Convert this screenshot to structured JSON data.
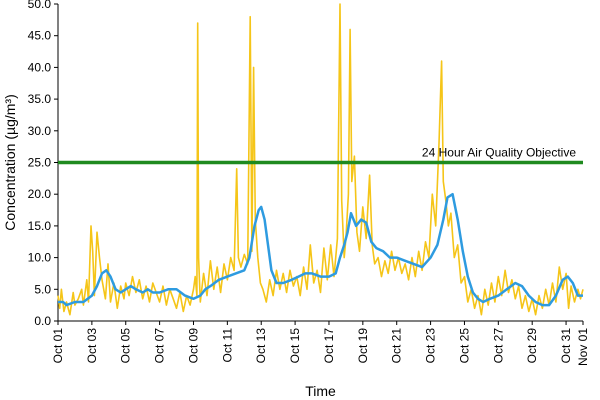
{
  "chart_data": {
    "type": "line",
    "title": "",
    "xlabel": "Time",
    "ylabel": "Concentration (µg/m³)",
    "ylim": [
      0,
      50
    ],
    "yticks": [
      "0.0",
      "5.0",
      "10.0",
      "15.0",
      "20.0",
      "25.0",
      "30.0",
      "35.0",
      "40.0",
      "45.0",
      "50.0"
    ],
    "x_range_days": [
      1,
      32
    ],
    "xticks": [
      {
        "day": 1,
        "label": "Oct 01"
      },
      {
        "day": 3,
        "label": "Oct 03"
      },
      {
        "day": 5,
        "label": "Oct 05"
      },
      {
        "day": 7,
        "label": "Oct 07"
      },
      {
        "day": 9,
        "label": "Oct 09"
      },
      {
        "day": 11,
        "label": "Oct 11"
      },
      {
        "day": 13,
        "label": "Oct 13"
      },
      {
        "day": 15,
        "label": "Oct 15"
      },
      {
        "day": 17,
        "label": "Oct 17"
      },
      {
        "day": 19,
        "label": "Oct 19"
      },
      {
        "day": 21,
        "label": "Oct 21"
      },
      {
        "day": 23,
        "label": "Oct 23"
      },
      {
        "day": 25,
        "label": "Oct 25"
      },
      {
        "day": 27,
        "label": "Oct 27"
      },
      {
        "day": 29,
        "label": "Oct 29"
      },
      {
        "day": 31,
        "label": "Oct 31"
      },
      {
        "day": 32,
        "label": "Nov 01"
      }
    ],
    "grid": false,
    "legend": "none",
    "colors": {
      "hourly": "#f5c518",
      "rolling": "#2e9be0",
      "objective": "#1f8a1f"
    },
    "objective": {
      "value": 25.0,
      "label": "24 Hour Air Quality Objective"
    },
    "series": [
      {
        "key": "hourly",
        "points": [
          [
            1.0,
            4.0
          ],
          [
            1.1,
            2.0
          ],
          [
            1.2,
            5.0
          ],
          [
            1.35,
            1.5
          ],
          [
            1.5,
            3.0
          ],
          [
            1.7,
            1.0
          ],
          [
            1.9,
            4.5
          ],
          [
            2.0,
            2.5
          ],
          [
            2.2,
            3.5
          ],
          [
            2.4,
            5.0
          ],
          [
            2.5,
            2.5
          ],
          [
            2.7,
            6.5
          ],
          [
            2.8,
            3.0
          ],
          [
            2.95,
            15.0
          ],
          [
            3.05,
            11.0
          ],
          [
            3.15,
            4.0
          ],
          [
            3.3,
            14.0
          ],
          [
            3.45,
            10.0
          ],
          [
            3.6,
            6.5
          ],
          [
            3.8,
            3.5
          ],
          [
            3.95,
            9.0
          ],
          [
            4.1,
            3.0
          ],
          [
            4.3,
            6.0
          ],
          [
            4.5,
            2.0
          ],
          [
            4.7,
            5.5
          ],
          [
            4.9,
            3.5
          ],
          [
            5.0,
            6.0
          ],
          [
            5.2,
            4.0
          ],
          [
            5.4,
            7.0
          ],
          [
            5.6,
            4.5
          ],
          [
            5.8,
            6.5
          ],
          [
            6.0,
            3.5
          ],
          [
            6.2,
            5.5
          ],
          [
            6.4,
            3.0
          ],
          [
            6.6,
            6.0
          ],
          [
            6.8,
            4.5
          ],
          [
            7.0,
            3.0
          ],
          [
            7.2,
            5.5
          ],
          [
            7.4,
            2.5
          ],
          [
            7.6,
            5.0
          ],
          [
            7.8,
            3.5
          ],
          [
            8.0,
            2.0
          ],
          [
            8.2,
            4.5
          ],
          [
            8.4,
            1.5
          ],
          [
            8.6,
            4.0
          ],
          [
            8.8,
            2.5
          ],
          [
            9.0,
            5.0
          ],
          [
            9.1,
            7.0
          ],
          [
            9.2,
            4.0
          ],
          [
            9.25,
            47.0
          ],
          [
            9.3,
            10.0
          ],
          [
            9.4,
            3.0
          ],
          [
            9.6,
            7.5
          ],
          [
            9.8,
            4.0
          ],
          [
            10.0,
            9.5
          ],
          [
            10.2,
            5.0
          ],
          [
            10.4,
            8.5
          ],
          [
            10.6,
            4.5
          ],
          [
            10.8,
            9.0
          ],
          [
            11.0,
            6.5
          ],
          [
            11.2,
            10.0
          ],
          [
            11.4,
            8.0
          ],
          [
            11.55,
            24.0
          ],
          [
            11.65,
            10.0
          ],
          [
            11.8,
            8.5
          ],
          [
            12.0,
            10.5
          ],
          [
            12.2,
            9.0
          ],
          [
            12.35,
            48.0
          ],
          [
            12.45,
            11.0
          ],
          [
            12.55,
            40.0
          ],
          [
            12.65,
            16.0
          ],
          [
            12.8,
            10.0
          ],
          [
            12.95,
            6.0
          ],
          [
            13.1,
            5.0
          ],
          [
            13.3,
            3.0
          ],
          [
            13.5,
            6.5
          ],
          [
            13.7,
            4.0
          ],
          [
            13.9,
            8.0
          ],
          [
            14.1,
            5.0
          ],
          [
            14.3,
            7.5
          ],
          [
            14.5,
            4.5
          ],
          [
            14.7,
            8.0
          ],
          [
            14.9,
            5.5
          ],
          [
            15.1,
            7.0
          ],
          [
            15.3,
            4.0
          ],
          [
            15.5,
            8.5
          ],
          [
            15.7,
            5.0
          ],
          [
            15.9,
            12.0
          ],
          [
            16.1,
            6.0
          ],
          [
            16.3,
            8.0
          ],
          [
            16.5,
            4.5
          ],
          [
            16.7,
            11.5
          ],
          [
            16.9,
            6.5
          ],
          [
            17.1,
            12.0
          ],
          [
            17.3,
            7.0
          ],
          [
            17.5,
            13.0
          ],
          [
            17.65,
            50.0
          ],
          [
            17.75,
            19.0
          ],
          [
            17.9,
            10.0
          ],
          [
            18.0,
            13.0
          ],
          [
            18.15,
            20.0
          ],
          [
            18.25,
            46.0
          ],
          [
            18.35,
            22.0
          ],
          [
            18.5,
            26.0
          ],
          [
            18.65,
            14.0
          ],
          [
            18.8,
            11.0
          ],
          [
            19.0,
            18.0
          ],
          [
            19.2,
            13.0
          ],
          [
            19.4,
            23.0
          ],
          [
            19.55,
            12.0
          ],
          [
            19.7,
            9.0
          ],
          [
            19.9,
            10.0
          ],
          [
            20.1,
            7.0
          ],
          [
            20.3,
            9.5
          ],
          [
            20.5,
            7.5
          ],
          [
            20.7,
            11.0
          ],
          [
            20.9,
            8.0
          ],
          [
            21.1,
            10.0
          ],
          [
            21.3,
            7.5
          ],
          [
            21.5,
            9.0
          ],
          [
            21.7,
            6.5
          ],
          [
            21.9,
            10.0
          ],
          [
            22.1,
            7.0
          ],
          [
            22.3,
            11.0
          ],
          [
            22.5,
            8.0
          ],
          [
            22.7,
            12.5
          ],
          [
            22.9,
            10.0
          ],
          [
            23.1,
            20.0
          ],
          [
            23.3,
            15.0
          ],
          [
            23.5,
            28.0
          ],
          [
            23.65,
            41.0
          ],
          [
            23.75,
            22.0
          ],
          [
            23.9,
            19.0
          ],
          [
            24.05,
            15.0
          ],
          [
            24.2,
            17.0
          ],
          [
            24.4,
            10.0
          ],
          [
            24.6,
            12.0
          ],
          [
            24.8,
            6.0
          ],
          [
            25.0,
            7.0
          ],
          [
            25.2,
            3.0
          ],
          [
            25.4,
            5.0
          ],
          [
            25.6,
            2.0
          ],
          [
            25.8,
            4.0
          ],
          [
            26.0,
            1.0
          ],
          [
            26.2,
            5.0
          ],
          [
            26.4,
            2.5
          ],
          [
            26.6,
            6.0
          ],
          [
            26.8,
            3.0
          ],
          [
            27.0,
            7.0
          ],
          [
            27.2,
            4.0
          ],
          [
            27.4,
            8.0
          ],
          [
            27.6,
            4.5
          ],
          [
            27.8,
            6.5
          ],
          [
            28.0,
            3.5
          ],
          [
            28.2,
            5.5
          ],
          [
            28.4,
            2.0
          ],
          [
            28.6,
            4.0
          ],
          [
            28.8,
            1.5
          ],
          [
            29.0,
            3.5
          ],
          [
            29.2,
            1.0
          ],
          [
            29.4,
            4.0
          ],
          [
            29.6,
            2.0
          ],
          [
            29.8,
            5.0
          ],
          [
            30.0,
            2.5
          ],
          [
            30.2,
            6.0
          ],
          [
            30.4,
            3.0
          ],
          [
            30.6,
            8.5
          ],
          [
            30.8,
            5.0
          ],
          [
            31.0,
            7.5
          ],
          [
            31.15,
            2.0
          ],
          [
            31.3,
            5.5
          ],
          [
            31.5,
            3.0
          ],
          [
            31.7,
            5.0
          ],
          [
            31.85,
            3.5
          ],
          [
            32.0,
            5.0
          ]
        ]
      },
      {
        "key": "rolling",
        "points": [
          [
            1.0,
            3.0
          ],
          [
            1.3,
            3.0
          ],
          [
            1.5,
            2.5
          ],
          [
            2.0,
            3.0
          ],
          [
            2.5,
            3.0
          ],
          [
            3.0,
            4.0
          ],
          [
            3.3,
            5.5
          ],
          [
            3.6,
            7.5
          ],
          [
            3.85,
            8.0
          ],
          [
            4.1,
            7.0
          ],
          [
            4.4,
            5.0
          ],
          [
            4.7,
            4.5
          ],
          [
            5.0,
            5.0
          ],
          [
            5.3,
            5.5
          ],
          [
            5.6,
            5.0
          ],
          [
            6.0,
            4.5
          ],
          [
            6.3,
            5.0
          ],
          [
            6.6,
            4.5
          ],
          [
            7.0,
            4.5
          ],
          [
            7.5,
            5.0
          ],
          [
            8.0,
            5.0
          ],
          [
            8.5,
            4.0
          ],
          [
            9.0,
            3.5
          ],
          [
            9.4,
            4.0
          ],
          [
            9.7,
            5.0
          ],
          [
            10.0,
            5.5
          ],
          [
            10.5,
            6.5
          ],
          [
            11.0,
            7.0
          ],
          [
            11.5,
            7.5
          ],
          [
            12.0,
            8.0
          ],
          [
            12.3,
            10.0
          ],
          [
            12.6,
            15.0
          ],
          [
            12.85,
            17.5
          ],
          [
            13.0,
            18.0
          ],
          [
            13.2,
            16.0
          ],
          [
            13.4,
            12.0
          ],
          [
            13.6,
            8.0
          ],
          [
            13.9,
            6.0
          ],
          [
            14.3,
            6.0
          ],
          [
            14.8,
            6.5
          ],
          [
            15.2,
            7.0
          ],
          [
            15.6,
            7.5
          ],
          [
            16.0,
            7.5
          ],
          [
            16.5,
            7.0
          ],
          [
            17.0,
            7.0
          ],
          [
            17.4,
            7.5
          ],
          [
            17.65,
            10.0
          ],
          [
            17.9,
            12.0
          ],
          [
            18.1,
            14.0
          ],
          [
            18.3,
            17.0
          ],
          [
            18.6,
            15.0
          ],
          [
            18.9,
            16.0
          ],
          [
            19.2,
            15.5
          ],
          [
            19.5,
            12.5
          ],
          [
            19.8,
            11.5
          ],
          [
            20.2,
            11.0
          ],
          [
            20.6,
            10.0
          ],
          [
            21.0,
            10.0
          ],
          [
            21.5,
            9.5
          ],
          [
            22.0,
            9.0
          ],
          [
            22.5,
            8.5
          ],
          [
            23.0,
            10.0
          ],
          [
            23.4,
            12.0
          ],
          [
            23.75,
            16.0
          ],
          [
            24.0,
            19.5
          ],
          [
            24.3,
            20.0
          ],
          [
            24.6,
            16.0
          ],
          [
            24.9,
            11.0
          ],
          [
            25.2,
            7.0
          ],
          [
            25.5,
            4.5
          ],
          [
            25.8,
            3.5
          ],
          [
            26.1,
            3.0
          ],
          [
            26.5,
            3.5
          ],
          [
            27.0,
            4.0
          ],
          [
            27.5,
            5.0
          ],
          [
            28.0,
            6.0
          ],
          [
            28.4,
            5.5
          ],
          [
            28.8,
            4.0
          ],
          [
            29.2,
            3.0
          ],
          [
            29.6,
            2.5
          ],
          [
            30.0,
            2.5
          ],
          [
            30.4,
            4.0
          ],
          [
            30.8,
            6.5
          ],
          [
            31.1,
            7.0
          ],
          [
            31.4,
            6.0
          ],
          [
            31.7,
            4.0
          ],
          [
            32.0,
            4.0
          ]
        ]
      }
    ]
  }
}
